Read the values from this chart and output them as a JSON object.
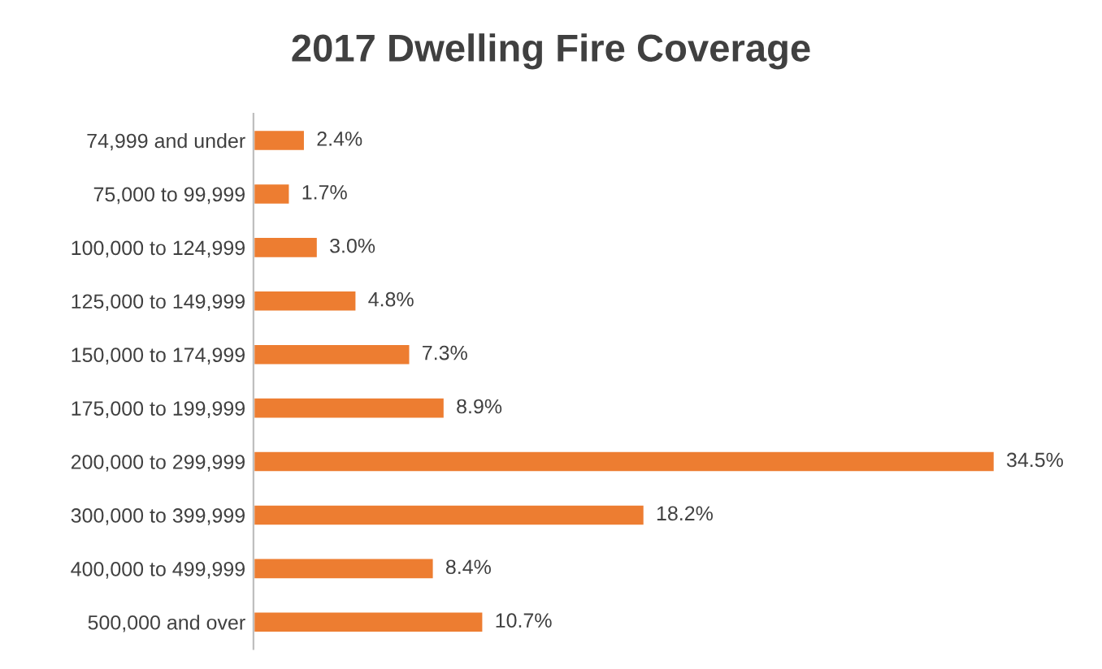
{
  "chart_data": {
    "type": "bar",
    "orientation": "horizontal",
    "title": "2017 Dwelling Fire Coverage",
    "categories": [
      "74,999 and under",
      "75,000 to 99,999",
      "100,000 to 124,999",
      "125,000 to 149,999",
      "150,000 to 174,999",
      "175,000 to 199,999",
      "200,000 to 299,999",
      "300,000 to 399,999",
      "400,000 to 499,999",
      "500,000 and over"
    ],
    "values": [
      2.4,
      1.7,
      3.0,
      4.8,
      7.3,
      8.9,
      34.5,
      18.2,
      8.4,
      10.7
    ],
    "value_labels": [
      "2.4%",
      "1.7%",
      "3.0%",
      "4.8%",
      "7.3%",
      "8.9%",
      "34.5%",
      "18.2%",
      "8.4%",
      "10.7%"
    ],
    "color": "#ed7d31",
    "grid": false,
    "legend": false
  }
}
